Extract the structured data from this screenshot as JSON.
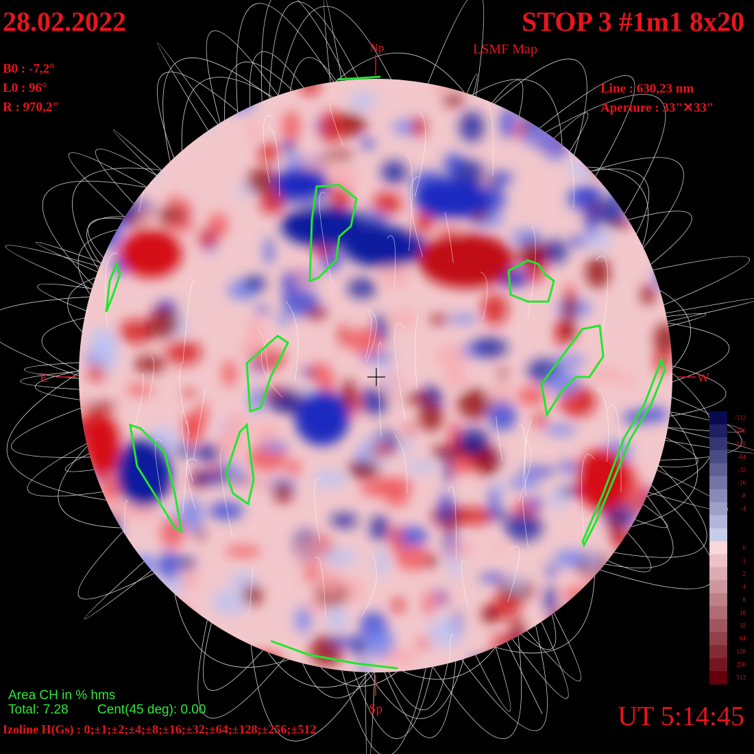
{
  "header": {
    "date": "28.02.2022",
    "title": "STOP 3 #1m1 8x20",
    "subtitle": "LSMF  Map",
    "time": "UT 5:14:45"
  },
  "parameters": {
    "b0": "B0 : -7,2°",
    "l0": "L0 : 96°",
    "radius": "R  : 970,2\"",
    "line": "Line :  630,23 nm",
    "aperture": "Aperture : 33\"✕33\""
  },
  "directions": {
    "north": "Np",
    "south": "Sp",
    "east": "E",
    "west": "W"
  },
  "coronal_holes": {
    "title": "Area CH in % hms",
    "total": "Total: 7.28",
    "central": "Cent(45 deg): 0.00"
  },
  "isolines": "Izoline H(Gs) : 0;±1;±2;±4;±8;±16;±32;±64;±128;±256;±512",
  "colorbar": {
    "labels": [
      "-512",
      "-256",
      "-128",
      "-64",
      "-32",
      "-16",
      "-8",
      "-4",
      "",
      "",
      "0",
      "1",
      "2",
      "4",
      "8",
      "16",
      "32",
      "64",
      "128",
      "256",
      "512"
    ]
  }
}
